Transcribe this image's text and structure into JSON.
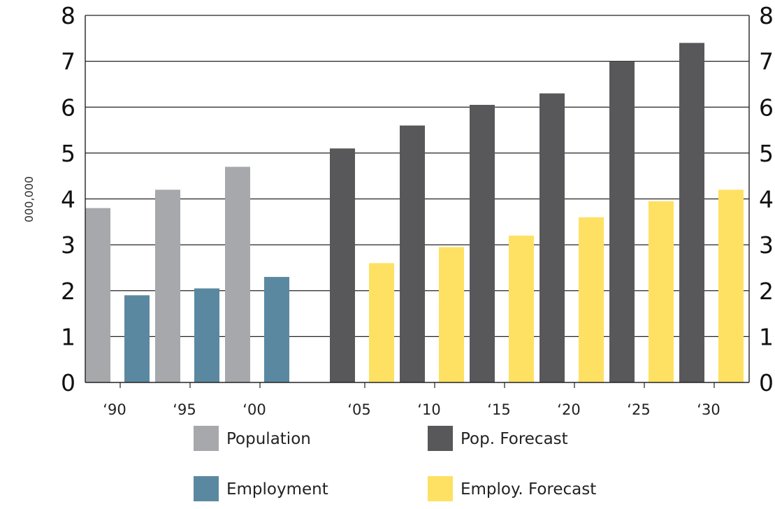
{
  "chart_data": {
    "type": "bar",
    "title": "",
    "xlabel": "",
    "ylabel": "000,000",
    "ylim": [
      0,
      8
    ],
    "yticks": [
      "0",
      "1",
      "2",
      "3",
      "4",
      "5",
      "6",
      "7",
      "8"
    ],
    "grid": true,
    "groups": [
      {
        "label": "‘90",
        "kind": "historical",
        "values": [
          3.8,
          1.9
        ]
      },
      {
        "label": "‘95",
        "kind": "historical",
        "values": [
          4.2,
          2.05
        ]
      },
      {
        "label": "‘00",
        "kind": "historical",
        "values": [
          4.7,
          2.3
        ]
      },
      {
        "label": "‘05",
        "kind": "forecast",
        "values": [
          5.1,
          2.6
        ]
      },
      {
        "label": "‘10",
        "kind": "forecast",
        "values": [
          5.6,
          2.95
        ]
      },
      {
        "label": "‘15",
        "kind": "forecast",
        "values": [
          6.05,
          3.2
        ]
      },
      {
        "label": "‘20",
        "kind": "forecast",
        "values": [
          6.3,
          3.6
        ]
      },
      {
        "label": "‘25",
        "kind": "forecast",
        "values": [
          7.0,
          3.95
        ]
      },
      {
        "label": "‘30",
        "kind": "forecast",
        "values": [
          7.4,
          4.2
        ]
      }
    ],
    "series": [
      {
        "name": "Population",
        "color": "#a7a8ab"
      },
      {
        "name": "Employment",
        "color": "#5b88a1"
      },
      {
        "name": "Pop. Forecast",
        "color": "#58585a"
      },
      {
        "name": "Employ. Forecast",
        "color": "#fee162"
      }
    ],
    "legend_position": "bottom"
  }
}
